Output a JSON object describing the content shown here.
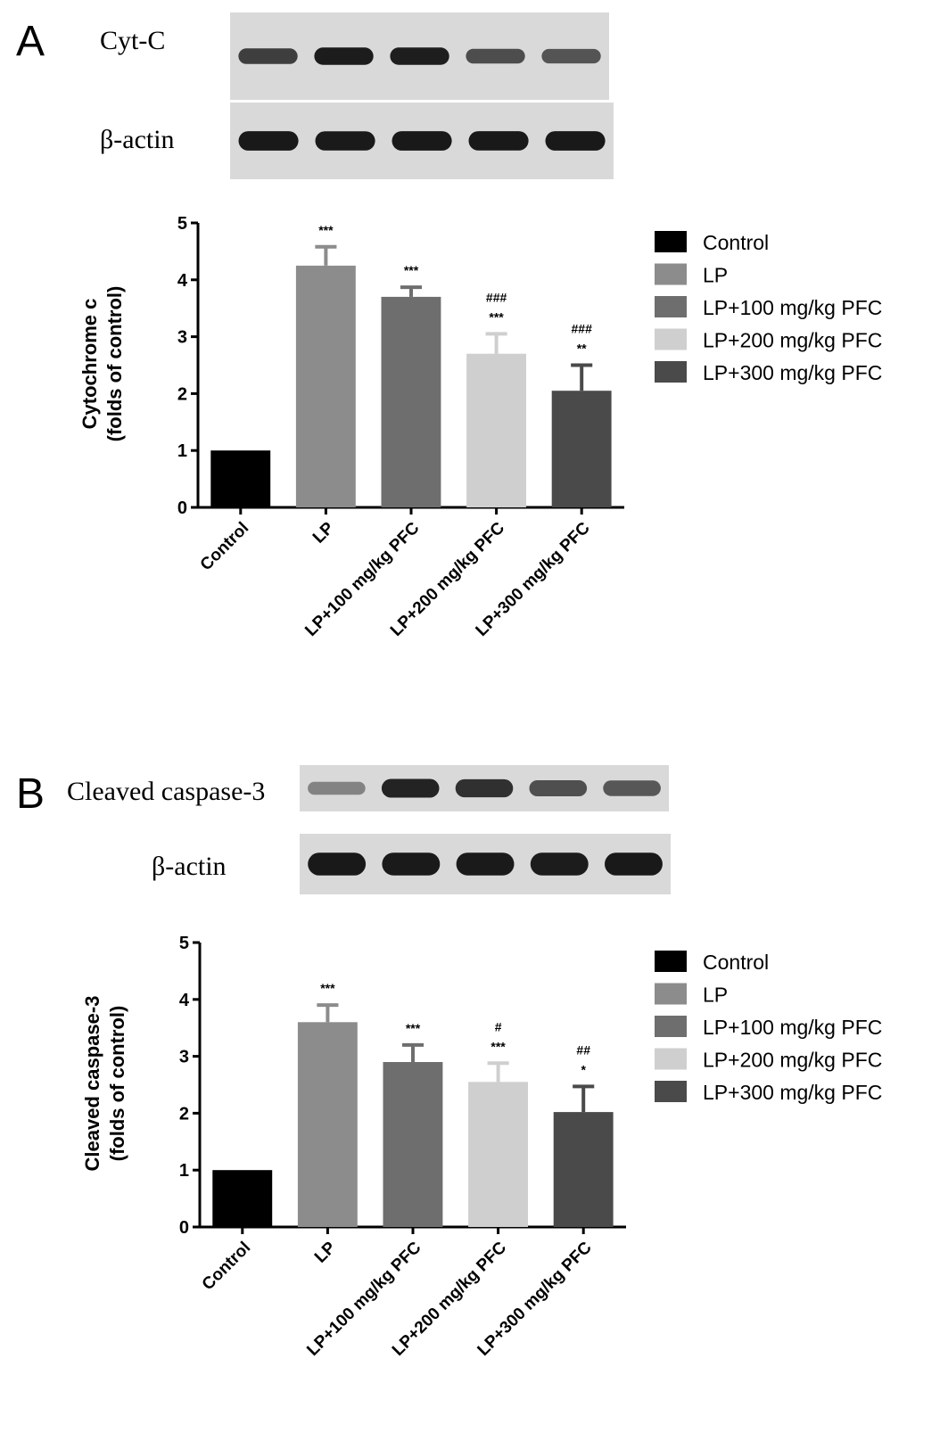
{
  "colors": {
    "background": "#ffffff",
    "ink": "#000000",
    "blot_bg": "#d9d9d9",
    "blot_band": "#141414",
    "series": [
      "#000000",
      "#8c8c8c",
      "#6e6e6e",
      "#cfcfcf",
      "#4a4a4a"
    ]
  },
  "legend_labels": [
    "Control",
    "LP",
    "LP+100 mg/kg PFC",
    "LP+200 mg/kg PFC",
    "LP+300 mg/kg PFC"
  ],
  "panels": [
    {
      "letter": "A",
      "blots": [
        {
          "label": "Cyt-C",
          "band_intensity": [
            0.72,
            0.95,
            0.93,
            0.62,
            0.58
          ]
        },
        {
          "label": "β-actin",
          "band_intensity": [
            0.98,
            0.96,
            0.98,
            0.97,
            0.98
          ]
        }
      ]
    },
    {
      "letter": "B",
      "blots": [
        {
          "label": "Cleaved caspase-3",
          "band_intensity": [
            0.25,
            0.9,
            0.82,
            0.6,
            0.55
          ]
        },
        {
          "label": "β-actin",
          "band_intensity": [
            0.97,
            0.96,
            0.96,
            0.95,
            0.97
          ]
        }
      ]
    }
  ],
  "chart_data": [
    {
      "type": "bar",
      "panel": "A",
      "categories": [
        "Control",
        "LP",
        "LP+100 mg/kg PFC",
        "LP+200 mg/kg PFC",
        "LP+300 mg/kg PFC"
      ],
      "values": [
        1.0,
        4.25,
        3.7,
        2.7,
        2.05
      ],
      "errors": [
        0.0,
        0.33,
        0.17,
        0.35,
        0.45
      ],
      "annotations": [
        {
          "lines": []
        },
        {
          "lines": [
            "***"
          ]
        },
        {
          "lines": [
            "***"
          ]
        },
        {
          "lines": [
            "###",
            "***"
          ]
        },
        {
          "lines": [
            "###",
            "**"
          ]
        }
      ],
      "ylabel_line1": "Cytochrome c",
      "ylabel_line2": "(folds of control)",
      "ylim": [
        0,
        5
      ],
      "yticks": [
        0,
        1,
        2,
        3,
        4,
        5
      ],
      "legend_position": "right",
      "grid": false
    },
    {
      "type": "bar",
      "panel": "B",
      "categories": [
        "Control",
        "LP",
        "LP+100 mg/kg PFC",
        "LP+200 mg/kg PFC",
        "LP+300 mg/kg PFC"
      ],
      "values": [
        1.0,
        3.6,
        2.9,
        2.55,
        2.02
      ],
      "errors": [
        0.0,
        0.3,
        0.3,
        0.33,
        0.45
      ],
      "annotations": [
        {
          "lines": []
        },
        {
          "lines": [
            "***"
          ]
        },
        {
          "lines": [
            "***"
          ]
        },
        {
          "lines": [
            "#",
            "***"
          ]
        },
        {
          "lines": [
            "##",
            "*"
          ]
        }
      ],
      "ylabel_line1": "Cleaved caspase-3",
      "ylabel_line2": "(folds of control)",
      "ylim": [
        0,
        5
      ],
      "yticks": [
        0,
        1,
        2,
        3,
        4,
        5
      ],
      "legend_position": "right",
      "grid": false
    }
  ]
}
